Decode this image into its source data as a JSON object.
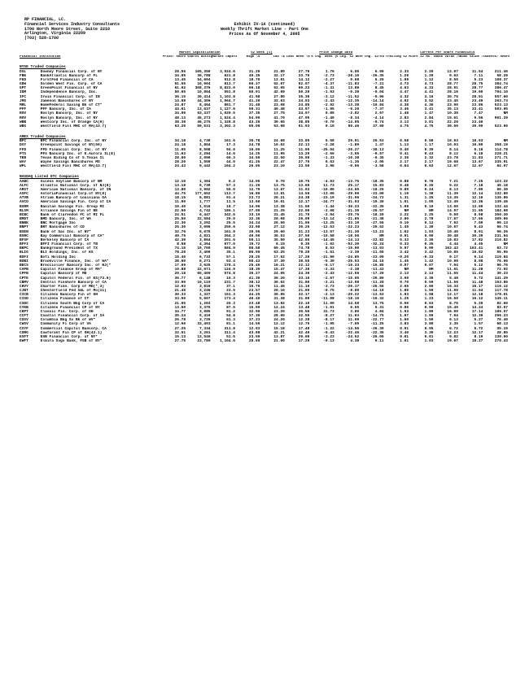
{
  "header": {
    "firm_line1": "RP FINANCIAL, LC.",
    "firm_line2": "Financial Services Industry Consultants",
    "firm_line3": "1700 North Moore Street, Suite 2210",
    "firm_line4": "Arlington, Virginia  22209",
    "firm_line5": "(703) 528-1700",
    "title1": "Exhibit IV-1A (continued)",
    "title2": "Weekly Thrift Market Line - Part One",
    "title3": "Prices As Of November 4, 2005",
    "left_col_head": "Financial Institution",
    "group_mkt": "Market Capitalization",
    "group_52": "52 Week (1)",
    "group_pcd": "Price Change Data",
    "group_cps": "Current Per Share Financials",
    "col_price": "Price/ Share \\$ (2)",
    "col_shares": "Shares Outstg (000)",
    "col_mktcap": "Market Capital. (\\$Mil)",
    "col_high": "High \\$",
    "col_low": "Low \\$",
    "col_lastw": "Last Week \\$",
    "col_pctw": "% Chg. Week (4)",
    "col_pct52": "% Chg. 52 Wks (5)",
    "col_pct04": "% Chg. 12/04 (5)",
    "col_12mo": "Trailing 12 Mo. EPS(3)",
    "col_core": "Core 12 Mo. EPS(3)",
    "col_book": "Book Value /Share (6)",
    "col_tbook": "Book Value /Share (7)",
    "col_assets": "Assets/ Share (8)"
  },
  "nyse": {
    "title": "NYSE Traded Companies",
    "rows": [
      [
        "DSL",
        "Downey Financial Corp. of NY",
        "28.55",
        "165,350",
        "3,024.6",
        "31.20",
        "21.80",
        "27.76",
        "1.76",
        "6.00",
        "6.00",
        "2.33",
        "2.20",
        "12.97",
        "11.54",
        "211.46"
      ],
      [
        "FBK",
        "BankAtlantic Bancorp of FL",
        "34.05",
        "30,788",
        "621.8",
        "40.35",
        "32.17",
        "33.75",
        "-2.73",
        "-28.10",
        "-26.35",
        "1.29",
        "1.29",
        "9.62",
        "7.11",
        "58.29"
      ],
      [
        "FED",
        "FirstFed Financial of CA",
        "13.45",
        "54,604",
        "912.8",
        "18.70",
        "12.81",
        "14.12",
        "-2.27",
        "9.68",
        "6.20",
        "1.09",
        "1.12",
        "8.50",
        "5.23",
        "108.37"
      ],
      [
        "GDW",
        "Golden West Fin. Corp. of CA",
        "61.55",
        "16,904",
        "813.7",
        "60.37",
        "52.07",
        "62.07",
        "-4.37",
        "-11.83",
        "-7.21",
        "4.73",
        "4.73",
        "28.77",
        "28.75",
        "384.74"
      ],
      [
        "GPT",
        "GreenPoint Financial of NY",
        "61.02",
        "308,376",
        "8,823.0",
        "66.18",
        "52.05",
        "60.23",
        "-1.31",
        "13.88",
        "8.45",
        "4.63",
        "4.33",
        "28.91",
        "28.77",
        "386.47"
      ],
      [
        "IDM",
        "Independence Bancorp, Inc.",
        "50.65",
        "10,864",
        "551.8",
        "60.91",
        "42.69",
        "50.20",
        "-1.93",
        "-6.39",
        "-0.04",
        "4.47",
        "4.41",
        "28.16",
        "19.60",
        "704.10"
      ],
      [
        "IFC",
        "Irwin Financial Corp. of IN",
        "36.15",
        "30,414",
        "1,103.8",
        "41.98",
        "27.80",
        "35.30",
        "-3.12",
        "-11.52",
        "-9.96",
        "4.32",
        "4.16",
        "30.75",
        "28.91",
        "557.60"
      ],
      [
        "JMS",
        "Jameson Bancshares of NY",
        "14.98",
        "44,306",
        "1,064.7",
        "41.20",
        "32.63",
        "34.03",
        "-2.43",
        "-12.35",
        "-14.14",
        "4.02",
        "3.52",
        "23.45",
        "23.49",
        "263.73"
      ],
      [
        "MRL",
        "HomeFederal Saving Bk of CT*",
        "24.87",
        "8,464",
        "861.7",
        "31.48",
        "23.08",
        "24.85",
        "-2.92",
        "-13.38",
        "-10.84",
        "4.38",
        "4.36",
        "23.90",
        "23.86",
        "523.13"
      ],
      [
        "PFF",
        "PFF Bancorp, Inc. of CA",
        "44.61",
        "13,637",
        "1,127.6",
        "50.31",
        "40.48",
        "44.97",
        "-1.95",
        "-6.20",
        "-7.37",
        "3.46",
        "3.41",
        "35.13",
        "33.41",
        "503.05"
      ],
      [
        "ROV",
        "Roslyn Bancorp, Inc. of NY",
        "34.00",
        "63,337",
        "1,029.5",
        "37.35",
        "27.75",
        "34.07",
        "0.80",
        "-2.82",
        "2.67",
        "1.48",
        "1.47",
        "10.39",
        "7.47",
        "NM"
      ],
      [
        "ROV",
        "Roslyn Bancorp, Inc. of NY",
        "48.13",
        "45,273",
        "1,524.4",
        "54.90",
        "41.70",
        "47.95",
        "-1.49",
        "-8.34",
        "-4.14",
        "2.83",
        "2.84",
        "15.61",
        "9.56",
        "901.29"
      ],
      [
        "WBB",
        "Westcorp Inc. of Orange CA(9)",
        "38.38",
        "46,275",
        "1,328.8",
        "43.20",
        "39.65",
        "38.85",
        "-0.70",
        "-14.05",
        "-9.74",
        "3.13",
        "3.01",
        "22.20",
        "23.40",
        ""
      ],
      [
        "WBS",
        "Westfield Finl MHC of MA(43.7)",
        "63.20",
        "59,531",
        "3,302.3",
        "65.00",
        "53.98",
        "61.93",
        "0.10",
        "50.46",
        "37.60",
        "4.75",
        "4.75",
        "39.50",
        "39.90",
        "523.96"
      ]
    ]
  },
  "amex": {
    "title": "AMEX Traded Companies",
    "rows": [
      [
        "BFC",
        "BFC Financial Corp. Inc. of NY",
        "34.18",
        "4,739",
        "161.6",
        "35.78",
        "24.68",
        "33.85",
        "5.58",
        "29.91",
        "20.53",
        "0.58",
        "0.58",
        "18.93",
        "18.93",
        "NM"
      ],
      [
        "DVY",
        "Greenpoint Savings of NY(50)",
        "24.18",
        "1,804",
        "17.3",
        "24.78",
        "10.02",
        "22.13",
        "-2.28",
        "-1.89",
        "1.47",
        "1.13",
        "1.17",
        "10.93",
        "10.80",
        "358.19"
      ],
      [
        "FFD",
        "FFD Financial Corp. Inc. of NY",
        "11.05",
        "8,508",
        "94.0",
        "16.00",
        "11.25",
        "11.05",
        "-25.04",
        "-26.27",
        "-30.13",
        "0.40",
        "0.30",
        "8.14",
        "6.18",
        "114.78"
      ],
      [
        "PTS",
        "PFS Bancorp Inc. of E.Aurora IL(8)",
        "11.03",
        "2,284",
        "14.6",
        "14.25",
        "11.95",
        "13.25",
        "-2.50",
        "-3.05",
        "-9.57",
        "0.41",
        "0.43",
        "8.12",
        "6.18",
        "228.21"
      ],
      [
        "TER",
        "Texas Biding Co of S.Texas IL",
        "28.00",
        "2,090",
        "60.3",
        "34.50",
        "22.50",
        "30.00",
        "-1.33",
        "-10.38",
        "-6.35",
        "2.30",
        "2.32",
        "23.78",
        "11.83",
        "271.71"
      ],
      [
        "WAY",
        "Wayne Savings Bancshares MO",
        "28.20",
        "1,559",
        "44.0",
        "41.25",
        "22.47",
        "27.75",
        "0.63",
        "-1.35",
        "-2.05",
        "2.17",
        "2.17",
        "19.68",
        "13.67",
        "335.91"
      ],
      [
        "WPL",
        "Westfield Finl MHC of MA(43.7)",
        "24.43",
        "9,442",
        "164.2",
        "26.05",
        "23.10",
        "23.50",
        "3.96",
        "-0.06",
        "-3.58",
        "0.64",
        "0.63",
        "12.67",
        "12.67",
        "84.97"
      ]
    ]
  },
  "nasdaq": {
    "title": "NASDAQ Listed OTC Companies",
    "rows": [
      [
        "AABC",
        "Access Anytime Bancorp of NM",
        "12.10",
        "1,304",
        "9.2",
        "14.05",
        "9.70",
        "10.75",
        "-4.03",
        "-13.75",
        "-18.35",
        "0.88",
        "0.78",
        "7.21",
        "7.25",
        "123.22"
      ],
      [
        "ALFC",
        "Atlantic National Corp. of NJ(8)",
        "13.18",
        "6,739",
        "57.3",
        "11.20",
        "13.75",
        "13.60",
        "11.73",
        "25.17",
        "15.83",
        "0.48",
        "0.26",
        "9.22",
        "7.18",
        "45.18"
      ],
      [
        "ARST",
        "American National Bancorp. of IN",
        "13.80",
        "3,962",
        "55.0",
        "12.79",
        "13.67",
        "11.03",
        "-10.80",
        "-24.65",
        "-18.25",
        "0.89",
        "0.24",
        "8.13",
        "7.80",
        "60.39"
      ],
      [
        "ASFC",
        "AstoriaFinancial Corp.of NY(8)",
        "44.75",
        "177,652",
        "113.7",
        "16.80",
        "13.81",
        "14.50",
        "-13.06",
        "-29.90",
        "-23.00",
        "1.19",
        "1.38",
        "11.39",
        "12.14",
        "132.80"
      ],
      [
        "ATVB",
        "Atrium Bancorp of Louisiana GA",
        "18.15",
        "6,881",
        "91.4",
        "23.73",
        "20.21",
        "24.38",
        "-23.19",
        "-31.06",
        "-24.72",
        "1.31",
        "1.25",
        "13.35",
        "12.10",
        "135.86"
      ],
      [
        "AVCO",
        "American Savings Fin. Corp of CA",
        "11.00",
        "1,777",
        "11.5",
        "13.60",
        "10.01",
        "12.17",
        "-24.77",
        "-31.03",
        "-19.30",
        "1.01",
        "1.05",
        "12.49",
        "12.36",
        "139.46"
      ],
      [
        "BSRM",
        "Banitan Savings Fin. Group MI",
        "10.40",
        "1,516",
        "18.7",
        "14.06",
        "13.38",
        "11.50",
        "-1.44",
        "-30.23",
        "-22.35",
        "1.09",
        "0.10",
        "13.00",
        "13.00",
        "132.44"
      ],
      [
        "BLSM",
        "Alliance Savings Fin of NE",
        "22.50",
        "4,742",
        "186.1",
        "27.00",
        "21.25",
        "22.00",
        "-2.08",
        "-21.30",
        "-20.57",
        "NM",
        "NM",
        "14.97",
        "11.95",
        "184.08"
      ],
      [
        "BCBC",
        "Bank of Clarendon FC of MI FL",
        "24.51",
        "6,447",
        "342.6",
        "33.19",
        "31.45",
        "31.70",
        "-2.94",
        "-25.76",
        "-18.20",
        "2.22",
        "2.25",
        "9.00",
        "8.98",
        "350.30"
      ],
      [
        "BMDT",
        "BMD Bancorp, Inc. of WA",
        "25.50",
        "22,584",
        "29.0",
        "32.36",
        "20.08",
        "26.09",
        "-13.14",
        "-21.85",
        "-21.38",
        "2.80",
        "2.78",
        "17.67",
        "17.65",
        "309.06"
      ],
      [
        "BNBK",
        "BNC Mortgage Inc",
        "22.30",
        "3,292",
        "25.5",
        "34.24",
        "20.50",
        "21.06",
        "-13.25",
        "-33.19",
        "-27.55",
        "0.10",
        "0.12",
        "7.92",
        "7.00",
        "99.13"
      ],
      [
        "BNPT",
        "BRT Bancshares of CO",
        "25.30",
        "3,096",
        "259.6",
        "33.98",
        "27.12",
        "30.25",
        "-12.53",
        "-22.23",
        "-20.52",
        "1.45",
        "1.30",
        "10.67",
        "6.43",
        "56.74"
      ],
      [
        "BSEN",
        "Bank of Sac Inc. of NY*",
        "32.76",
        "5,076",
        "161.9",
        "39.96",
        "29.60",
        "31.23",
        "-13.57",
        "-21.30",
        "-13.23",
        "1.02",
        "1.03",
        "10.40",
        "8.91",
        "56.26"
      ],
      [
        "BSRC",
        "Bay Commercial Bancorp of CA*",
        "40.75",
        "4,821",
        "264.2",
        "49.00",
        "36.53",
        "37.50",
        "-10.58",
        "-18.56",
        "NM",
        "0.91",
        "0.90",
        "30.48",
        "30.39",
        "231.94"
      ],
      [
        "BFSF",
        "Berkeley Bancorp of CA",
        "42.30",
        "3,864",
        "201.6",
        "50.11",
        "35.50",
        "42.85",
        "-14.45",
        "-14.13",
        "-23.82",
        "5.33",
        "3.35",
        "18.83",
        "17.82",
        "310.82"
      ],
      [
        "BFFI",
        "BFFI Financial Corp. of TN",
        "8.58",
        "4,364",
        "677.0",
        "19.72",
        "8.15",
        "9.30",
        "-1.02",
        "-52.30",
        "-32.24",
        "0.33",
        "0.35",
        "4.44",
        "4.45",
        "NM"
      ],
      [
        "BKPC",
        "Bankground President of TX",
        "74.10",
        "19,700",
        "584.9",
        "86.58",
        "69.45",
        "74.78",
        "8.53",
        "-15.90",
        "-13.03",
        "5.97",
        "5.99",
        "163.43",
        "163.41",
        "63.72"
      ],
      [
        "BLIG",
        "BLI Holdings, Inc. of KS",
        "78.28",
        "2,400",
        "35.1",
        "80.00",
        "63.25",
        "78.20",
        "-1.51",
        "-2.30",
        "-11.55",
        "3.42",
        "3.42",
        "10.85",
        "10.82",
        "55.95"
      ],
      [
        "BOFI",
        "Bofi Holding Inc",
        "15.40",
        "6,733",
        "57.1",
        "20.25",
        "17.52",
        "17.20",
        "-21.90",
        "-24.85",
        "-23.00",
        "-0.25",
        "-0.33",
        "9.17",
        "9.14",
        "110.84"
      ],
      [
        "BOBI",
        "Brookville Finance, Inc. of WA*",
        "38.60",
        "6,271",
        "93.4",
        "50.43",
        "37.30",
        "38.55",
        "-5.30",
        "-25.53",
        "24.15",
        "1.45",
        "1.42",
        "10.90",
        "8.08",
        "76.66"
      ],
      [
        "BECS",
        "Brecciolier Bancorp Inc. of NJ(*",
        "17.09",
        "3,625",
        "178.4",
        "25.40",
        "16.21",
        "22.12",
        "-6.17",
        "-16.33",
        "-16.85",
        "0.07",
        "0.07",
        "7.94",
        "5.12",
        "96.76"
      ],
      [
        "CAPB",
        "Capital Finance Group of MA*",
        "10.88",
        "22,671",
        "124.9",
        "18.30",
        "15.47",
        "17.38",
        "-2.33",
        "-2.38",
        "-11.43",
        "NM",
        "NM",
        "11.61",
        "11.28",
        "72.92"
      ],
      [
        "CPFB",
        "Capital Bancorp of MD",
        "20.18",
        "65,400",
        "574.8",
        "35.27",
        "24.05",
        "24.30",
        "-2.43",
        "-12.56",
        "-17.20",
        "2.13",
        "2.13",
        "11.55",
        "11.44",
        "39.23"
      ],
      [
        "CPTE",
        "Capitol Federal Fin. of KS(73.0)",
        "35.77",
        "6,148",
        "15.3",
        "41.30",
        "30.20",
        "33.10",
        "-2.67",
        "-15.05",
        "-20.80",
        "3.09",
        "3.39",
        "5.48",
        "5.72",
        "141.29"
      ],
      [
        "CBMV",
        "Central Finshore Bancorp of CA",
        "33.90",
        "10,110",
        "231.7",
        "38.12",
        "30.02",
        "31.80",
        "-2.21",
        "-12.08",
        "-11.20",
        "0.70",
        "0.59",
        "11.56",
        "11.48",
        "153.86"
      ],
      [
        "CHVY",
        "Charter Finn. Corp of MD(*,3)",
        "12.03",
        "3,816",
        "37.1",
        "15.76",
        "11.45",
        "11.10",
        "-3.73",
        "-26.17",
        "-25.55",
        "2.65",
        "2.60",
        "16.34",
        "16.17",
        "116.12"
      ],
      [
        "CJBT",
        "Chesterfield Fed S&L of Mo(11)",
        "21.46",
        "3,246",
        "23.5",
        "23.57",
        "20.10",
        "21.00",
        "-0.75",
        "-8.80",
        "-14.10",
        "1.80",
        "1.59",
        "11.05",
        "11.04",
        "117.78"
      ],
      [
        "CICB",
        "Citizens Bancorp Fin of OH",
        "30.33",
        "1,327",
        "151.3",
        "44.25",
        "30.85",
        "32.17",
        "-2.13",
        "-20.22",
        "-13.53",
        "1.93",
        "1.98",
        "12.17",
        "12.18",
        "178.01"
      ],
      [
        "CISD",
        "Citizens Finance of CT",
        "33.50",
        "5,007",
        "173.4",
        "40.40",
        "31.38",
        "31.80",
        "-11.08",
        "-18.10",
        "-19.32",
        "1.25",
        "1.23",
        "16.50",
        "16.12",
        "145.11"
      ],
      [
        "CSDC",
        "Citizens South Bkg Corp of CA",
        "21.05",
        "1,203",
        "26.3",
        "23.48",
        "13.82",
        "22.10",
        "11.00",
        "14.58",
        "13.75",
        "0.50",
        "0.63",
        "8.75",
        "5.29",
        "82.60"
      ],
      [
        "CYKB",
        "Citizens Financial CP of NY",
        "13.50",
        "3,375",
        "87.5",
        "15.00",
        "12.24",
        "13.48",
        "-1.01",
        "0.65",
        "0.31",
        "0.86",
        "0.90",
        "15.49",
        "14.24",
        "83.57"
      ],
      [
        "CKPT",
        "Classic Fin. Corp. of OH",
        "34.77",
        "3,085",
        "91.2",
        "32.90",
        "23.20",
        "30.50",
        "31.73",
        "3.80",
        "4.84",
        "1.93",
        "1.89",
        "16.99",
        "17.14",
        "186.57"
      ],
      [
        "CCFT",
        "Coastal Financial Corp. of IA",
        "35.24",
        "5,419",
        "54.8",
        "37.30",
        "28.00",
        "32.50",
        "-8.27",
        "11.03",
        "-14.75",
        "1.97",
        "1.99",
        "7.94",
        "12.30",
        "296.23"
      ],
      [
        "COSV",
        "Columbia Bkg Sv Bk of WV*",
        "26.78",
        "3,726",
        "61.3",
        "37.23",
        "24.20",
        "12.28",
        "-8.17",
        "11.09",
        "-22.77",
        "1.60",
        "1.59",
        "6.13",
        "5.27",
        "76.40"
      ],
      [
        "CWSV",
        "Community Fi Corp of VA",
        "12.50",
        "33,493",
        "81.1",
        "14.56",
        "12.12",
        "12.75",
        "-1.95",
        "-7.05",
        "-11.25",
        "3.83",
        "3.80",
        "2.35",
        "1.57",
        "68.13"
      ],
      [
        "CXYF",
        "Commercial Capital Bancorp. CA",
        "27.25",
        "7,334",
        "311.8",
        "12.03",
        "15.18",
        "17.48",
        "-1.22",
        "-14.56",
        "-26.30",
        "0.91",
        "0.95",
        "6.72",
        "6.72",
        "35.19"
      ],
      [
        "CORG",
        "Cowforant Fin CP of OH(43.1)",
        "32.51",
        "3,261",
        "311.4",
        "43.88",
        "42.21",
        "42.40",
        "-0.43",
        "-22.46",
        "-22.35",
        "3.40",
        "3.39",
        "12.23",
        "12.17",
        "28.85"
      ],
      [
        "ESFT",
        "ESB Financial Corp. of NY*",
        "15.13",
        "13,546",
        "51.5",
        "23.50",
        "13.87",
        "20.00",
        "-3.23",
        "-24.52",
        "-26.05",
        "0.61",
        "0.61",
        "9.82",
        "8.19",
        "130.50"
      ],
      [
        "EWFT",
        "Elmira Svgs Bank, FSB of NY*",
        "27.75",
        "23,789",
        "1,104.6",
        "20.60",
        "21.00",
        "17.29",
        "-0.13",
        "4.38",
        "0.11",
        "1.01",
        "1.03",
        "19.67",
        "18.27",
        "270.43"
      ]
    ]
  }
}
